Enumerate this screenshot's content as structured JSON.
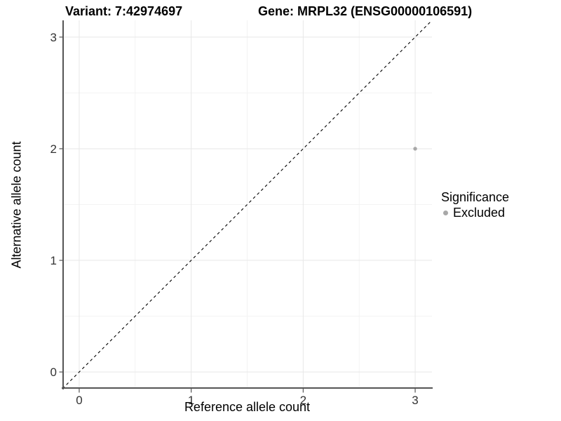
{
  "legend": {
    "title": "Significance",
    "items": [
      {
        "label": "Excluded",
        "color": "#a8a8a8"
      }
    ]
  },
  "colors": {
    "axis_line": "#555555",
    "tick_mark": "#555555",
    "tick_label": "#333333",
    "grid_major": "#e7e7e7",
    "grid_minor": "#f3f3f3",
    "identity_line": "#000000",
    "point": "#a8a8a8",
    "title": "#000000"
  },
  "chart_data": {
    "type": "scatter",
    "title_variant": "Variant: 7:42974697",
    "title_gene": "Gene: MRPL32 (ENSG00000106591)",
    "xlabel": "Reference allele count",
    "ylabel": "Alternative allele count",
    "xlim": [
      -0.15,
      3.15
    ],
    "ylim": [
      -0.15,
      3.15
    ],
    "x_ticks": [
      0,
      1,
      2,
      3
    ],
    "y_ticks": [
      0,
      1,
      2,
      3
    ],
    "x_minor_ticks": [
      0.5,
      1.5,
      2.5
    ],
    "y_minor_ticks": [
      0.5,
      1.5,
      2.5
    ],
    "grid": true,
    "legend_position": "right",
    "series": [
      {
        "name": "Excluded",
        "color": "#a8a8a8",
        "points": [
          {
            "x": 3,
            "y": 2
          }
        ]
      }
    ],
    "identity_line": {
      "style": "dashed",
      "color": "#000000",
      "from": -0.15,
      "to": 3.15
    }
  }
}
